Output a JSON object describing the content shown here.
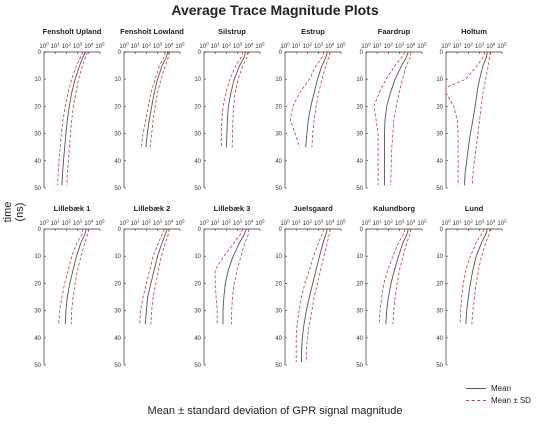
{
  "title": "Average Trace Magnitude Plots",
  "xlabel": "Mean ± standard deviation of GPR signal magnitude",
  "ylabel": "time (ns)",
  "legend": {
    "mean_label": "Mean",
    "sd_label": "Mean ± SD"
  },
  "colors": {
    "mean": "#555555",
    "sd": "#e0303a",
    "axis": "#333333"
  },
  "chart_data": [
    {
      "type": "line",
      "title": "Fensholt Upland",
      "x_scale": "log",
      "xlim": [
        1,
        100000
      ],
      "ylim": [
        0,
        50
      ],
      "x_ticks": [
        "10^0",
        "10^1",
        "10^2",
        "10^3",
        "10^4",
        "10^5"
      ],
      "y_ticks": [
        0,
        10,
        20,
        30,
        40,
        50
      ],
      "t": [
        0,
        2,
        5,
        10,
        15,
        20,
        25,
        30,
        35,
        40,
        45,
        49
      ],
      "mean": [
        5000,
        3000,
        1500,
        600,
        300,
        180,
        120,
        90,
        70,
        55,
        45,
        40
      ],
      "lower": [
        3000,
        1800,
        800,
        300,
        140,
        80,
        50,
        35,
        28,
        22,
        18,
        16
      ],
      "upper": [
        8000,
        5000,
        2800,
        1200,
        700,
        420,
        300,
        230,
        180,
        150,
        120,
        110
      ]
    },
    {
      "type": "line",
      "title": "Fensholt Lowland",
      "x_scale": "log",
      "xlim": [
        1,
        100000
      ],
      "ylim": [
        0,
        50
      ],
      "x_ticks": [
        "10^0",
        "10^1",
        "10^2",
        "10^3",
        "10^4",
        "10^5"
      ],
      "y_ticks": [
        0,
        10,
        20,
        30,
        40,
        50
      ],
      "t": [
        0,
        2,
        5,
        10,
        15,
        20,
        25,
        30,
        35
      ],
      "mean": [
        8000,
        6000,
        2500,
        1000,
        500,
        300,
        180,
        120,
        90
      ],
      "lower": [
        5000,
        3500,
        1500,
        600,
        250,
        150,
        90,
        50,
        35
      ],
      "upper": [
        12000,
        9000,
        5000,
        2000,
        1000,
        600,
        400,
        300,
        220
      ]
    },
    {
      "type": "line",
      "title": "Silstrup",
      "x_scale": "log",
      "xlim": [
        1,
        100000
      ],
      "ylim": [
        0,
        50
      ],
      "x_ticks": [
        "10^0",
        "10^1",
        "10^2",
        "10^3",
        "10^4",
        "10^5"
      ],
      "y_ticks": [
        0,
        10,
        20,
        30,
        40,
        50
      ],
      "t": [
        0,
        2,
        5,
        10,
        15,
        20,
        25,
        30,
        35
      ],
      "mean": [
        5000,
        4000,
        1500,
        500,
        250,
        150,
        120,
        110,
        100
      ],
      "lower": [
        3000,
        2000,
        700,
        200,
        90,
        50,
        40,
        35,
        35
      ],
      "upper": [
        8000,
        7000,
        3000,
        1100,
        600,
        450,
        380,
        350,
        330
      ]
    },
    {
      "type": "line",
      "title": "Estrup",
      "x_scale": "log",
      "xlim": [
        1,
        100000
      ],
      "ylim": [
        0,
        50
      ],
      "x_ticks": [
        "10^0",
        "10^1",
        "10^2",
        "10^3",
        "10^4",
        "10^5"
      ],
      "y_ticks": [
        0,
        10,
        20,
        30,
        40,
        50
      ],
      "t": [
        0,
        2,
        5,
        10,
        15,
        20,
        25,
        30,
        35
      ],
      "mean": [
        6000,
        4500,
        2000,
        800,
        400,
        200,
        120,
        90,
        70
      ],
      "lower": [
        3000,
        2000,
        600,
        150,
        20,
        5,
        3,
        8,
        20
      ],
      "upper": [
        10000,
        8000,
        4500,
        2000,
        1000,
        600,
        400,
        300,
        250
      ]
    },
    {
      "type": "line",
      "title": "Faardrup",
      "x_scale": "log",
      "xlim": [
        1,
        100000
      ],
      "ylim": [
        0,
        50
      ],
      "x_ticks": [
        "10^0",
        "10^1",
        "10^2",
        "10^3",
        "10^4",
        "10^5"
      ],
      "y_ticks": [
        0,
        10,
        20,
        30,
        40,
        50
      ],
      "t": [
        0,
        2,
        5,
        10,
        15,
        20,
        25,
        30,
        35,
        40,
        45,
        49
      ],
      "mean": [
        6000,
        4000,
        1500,
        400,
        150,
        70,
        50,
        45,
        45,
        45,
        45,
        45
      ],
      "lower": [
        3000,
        1500,
        400,
        60,
        15,
        5,
        8,
        12,
        12,
        12,
        12,
        12
      ],
      "upper": [
        10000,
        9000,
        4000,
        1800,
        900,
        500,
        300,
        250,
        200,
        180,
        170,
        160
      ]
    },
    {
      "type": "line",
      "title": "Holtum",
      "x_scale": "log",
      "xlim": [
        1,
        100000
      ],
      "ylim": [
        0,
        50
      ],
      "x_ticks": [
        "10^0",
        "10^1",
        "10^2",
        "10^3",
        "10^4",
        "10^5"
      ],
      "y_ticks": [
        0,
        10,
        20,
        30,
        40,
        50
      ],
      "t": [
        0,
        2,
        5,
        10,
        13,
        15,
        20,
        25,
        30,
        35,
        40,
        45,
        49
      ],
      "mean": [
        5000,
        4000,
        2000,
        1000,
        700,
        600,
        400,
        250,
        150,
        100,
        70,
        50,
        45
      ],
      "lower": [
        3000,
        2000,
        600,
        60,
        1,
        1,
        5,
        10,
        12,
        12,
        12,
        12,
        12
      ],
      "upper": [
        9000,
        8000,
        6000,
        3500,
        2500,
        2000,
        1400,
        1000,
        700,
        500,
        350,
        250,
        220
      ]
    },
    {
      "type": "line",
      "title": "Lillebæk 1",
      "x_scale": "log",
      "xlim": [
        1,
        100000
      ],
      "ylim": [
        0,
        50
      ],
      "x_ticks": [
        "10^0",
        "10^1",
        "10^2",
        "10^3",
        "10^4",
        "10^5"
      ],
      "y_ticks": [
        0,
        10,
        20,
        30,
        40,
        50
      ],
      "t": [
        0,
        2,
        5,
        10,
        15,
        20,
        25,
        30,
        35
      ],
      "mean": [
        6000,
        4500,
        2000,
        800,
        400,
        200,
        120,
        90,
        80
      ],
      "lower": [
        3000,
        2500,
        900,
        300,
        150,
        70,
        40,
        25,
        20
      ],
      "upper": [
        10000,
        8000,
        4500,
        2000,
        1000,
        600,
        400,
        300,
        280
      ]
    },
    {
      "type": "line",
      "title": "Lillebæk 2",
      "x_scale": "log",
      "xlim": [
        1,
        100000
      ],
      "ylim": [
        0,
        50
      ],
      "x_ticks": [
        "10^0",
        "10^1",
        "10^2",
        "10^3",
        "10^4",
        "10^5"
      ],
      "y_ticks": [
        0,
        10,
        20,
        30,
        40,
        50
      ],
      "t": [
        0,
        2,
        5,
        10,
        15,
        20,
        25,
        30,
        35
      ],
      "mean": [
        7000,
        5000,
        2500,
        1000,
        500,
        250,
        130,
        100,
        80
      ],
      "lower": [
        4000,
        2500,
        1200,
        400,
        200,
        100,
        50,
        30,
        25
      ],
      "upper": [
        11000,
        9000,
        5000,
        2200,
        1200,
        700,
        400,
        300,
        250
      ]
    },
    {
      "type": "line",
      "title": "Lillebæk 3",
      "x_scale": "log",
      "xlim": [
        1,
        100000
      ],
      "ylim": [
        0,
        50
      ],
      "x_ticks": [
        "10^0",
        "10^1",
        "10^2",
        "10^3",
        "10^4",
        "10^5"
      ],
      "y_ticks": [
        0,
        10,
        20,
        30,
        40,
        50
      ],
      "t": [
        0,
        2,
        5,
        10,
        15,
        20,
        25,
        30,
        35
      ],
      "mean": [
        6000,
        4000,
        1500,
        400,
        150,
        80,
        60,
        50,
        50
      ],
      "lower": [
        3000,
        1800,
        500,
        60,
        10,
        10,
        12,
        15,
        15
      ],
      "upper": [
        10000,
        9000,
        4500,
        2000,
        900,
        500,
        350,
        300,
        280
      ]
    },
    {
      "type": "line",
      "title": "Juelsgaard",
      "x_scale": "log",
      "xlim": [
        1,
        100000
      ],
      "ylim": [
        0,
        50
      ],
      "x_ticks": [
        "10^0",
        "10^1",
        "10^2",
        "10^3",
        "10^4",
        "10^5"
      ],
      "y_ticks": [
        0,
        10,
        20,
        30,
        40,
        50
      ],
      "t": [
        0,
        2,
        5,
        10,
        15,
        20,
        25,
        30,
        35,
        40,
        45,
        49
      ],
      "mean": [
        6000,
        4500,
        2500,
        1200,
        600,
        300,
        150,
        80,
        50,
        35,
        30,
        30
      ],
      "lower": [
        3000,
        2000,
        1000,
        350,
        150,
        60,
        30,
        18,
        12,
        10,
        10,
        10
      ],
      "upper": [
        11000,
        9000,
        6000,
        3000,
        1500,
        800,
        400,
        250,
        150,
        100,
        80,
        80
      ]
    },
    {
      "type": "line",
      "title": "Kalundborg",
      "x_scale": "log",
      "xlim": [
        1,
        100000
      ],
      "ylim": [
        0,
        50
      ],
      "x_ticks": [
        "10^0",
        "10^1",
        "10^2",
        "10^3",
        "10^4",
        "10^5"
      ],
      "y_ticks": [
        0,
        10,
        20,
        30,
        40,
        50
      ],
      "t": [
        0,
        2,
        5,
        10,
        15,
        20,
        25,
        30,
        35
      ],
      "mean": [
        6000,
        4500,
        2000,
        800,
        350,
        170,
        100,
        70,
        60
      ],
      "lower": [
        3000,
        2200,
        800,
        250,
        90,
        40,
        25,
        18,
        15
      ],
      "upper": [
        10000,
        8000,
        4500,
        2000,
        1000,
        600,
        400,
        300,
        250
      ]
    },
    {
      "type": "line",
      "title": "Lund",
      "x_scale": "log",
      "xlim": [
        1,
        100000
      ],
      "ylim": [
        0,
        50
      ],
      "x_ticks": [
        "10^0",
        "10^1",
        "10^2",
        "10^3",
        "10^4",
        "10^5"
      ],
      "y_ticks": [
        0,
        10,
        20,
        30,
        40,
        50
      ],
      "t": [
        0,
        2,
        5,
        10,
        15,
        20,
        25,
        30,
        35
      ],
      "mean": [
        5000,
        3500,
        1500,
        500,
        250,
        150,
        100,
        70,
        60
      ],
      "lower": [
        2500,
        1500,
        500,
        150,
        60,
        35,
        25,
        20,
        18
      ],
      "upper": [
        9000,
        7000,
        3500,
        1500,
        800,
        500,
        350,
        250,
        200
      ]
    }
  ]
}
